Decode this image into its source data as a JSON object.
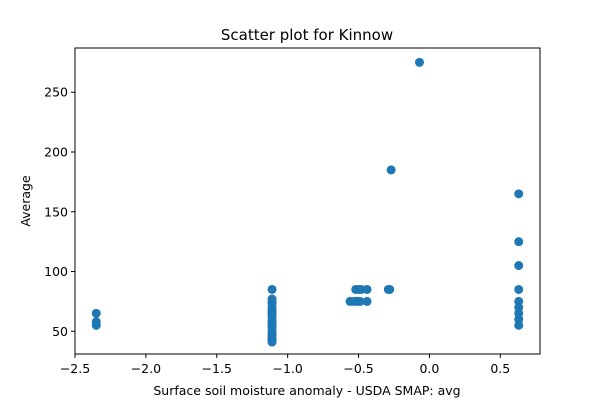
{
  "chart_data": {
    "type": "scatter",
    "title": "Scatter plot for Kinnow",
    "xlabel": "Surface soil moisture anomaly  - USDA SMAP: avg",
    "ylabel": "Average",
    "xlim": [
      -2.5,
      0.78
    ],
    "ylim": [
      31,
      287
    ],
    "xticks": [
      -2.5,
      -2.0,
      -1.5,
      -1.0,
      -0.5,
      0.0,
      0.5
    ],
    "xtick_labels": [
      "−2.5",
      "−2.0",
      "−1.5",
      "−1.0",
      "−0.5",
      "0.0",
      "0.5"
    ],
    "yticks": [
      50,
      100,
      150,
      200,
      250
    ],
    "ytick_labels": [
      "50",
      "100",
      "150",
      "200",
      "250"
    ],
    "grid": false,
    "marker_color": "#1f77b4",
    "series": [
      {
        "x": [
          -2.35,
          -2.35,
          -2.35,
          -1.11,
          -1.11,
          -1.11,
          -1.11,
          -1.11,
          -1.11,
          -1.11,
          -1.11,
          -1.11,
          -1.11,
          -1.11,
          -1.11,
          -1.11,
          -1.11,
          -1.11,
          -1.11,
          -1.11,
          -1.11,
          -1.11,
          -1.11,
          -1.11,
          -1.11,
          -0.56,
          -0.53,
          -0.51,
          -0.49,
          -0.44,
          -0.52,
          -0.5,
          -0.48,
          -0.44,
          -0.29,
          -0.28,
          -0.27,
          -0.07,
          0.63,
          0.63,
          0.63,
          0.63,
          0.63,
          0.63,
          0.63,
          0.63,
          0.63
        ],
        "y": [
          65,
          58,
          55,
          85,
          77,
          75,
          73,
          70,
          68,
          66,
          65,
          63,
          60,
          58,
          56,
          55,
          53,
          50,
          48,
          47,
          45,
          44,
          43,
          42,
          41,
          75,
          75,
          75,
          75,
          75,
          85,
          85,
          85,
          85,
          85,
          85,
          185,
          275,
          165,
          125,
          105,
          85,
          75,
          70,
          65,
          60,
          55
        ]
      }
    ]
  }
}
